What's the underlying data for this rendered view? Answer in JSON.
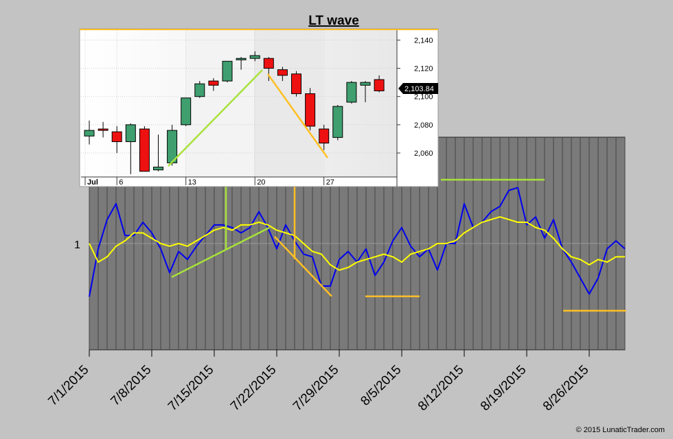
{
  "chart_data": [
    {
      "type": "line",
      "title": "LT wave",
      "x_tick_labels": [
        "7/1/2015",
        "7/8/2015",
        "7/15/2015",
        "7/22/2015",
        "7/29/2015",
        "8/5/2015",
        "8/12/2015",
        "8/19/2015",
        "8/26/2015"
      ],
      "y_tick_labels": [
        "1"
      ],
      "ylim": [
        0.6,
        1.4
      ],
      "n_points": 61,
      "series": [
        {
          "color": "#0000ee",
          "values": [
            0.8,
            0.98,
            1.09,
            1.15,
            1.03,
            1.03,
            1.08,
            1.04,
            0.98,
            0.89,
            0.97,
            0.94,
            0.99,
            1.03,
            1.07,
            1.07,
            1.06,
            1.04,
            1.06,
            1.12,
            1.06,
            0.98,
            1.07,
            1.01,
            0.96,
            0.95,
            0.84,
            0.84,
            0.94,
            0.97,
            0.93,
            0.98,
            0.88,
            0.93,
            1.01,
            1.06,
            0.99,
            0.95,
            0.98,
            0.9,
            1.0,
            1.0,
            1.15,
            1.06,
            1.08,
            1.12,
            1.14,
            1.2,
            1.21,
            1.07,
            1.1,
            1.02,
            1.09,
            0.98,
            0.93,
            0.87,
            0.81,
            0.87,
            0.98,
            1.01,
            0.98
          ]
        },
        {
          "color": "#ffff00",
          "values": [
            1.0,
            0.93,
            0.95,
            0.99,
            1.01,
            1.04,
            1.04,
            1.02,
            1.0,
            0.99,
            1.0,
            0.99,
            1.01,
            1.03,
            1.05,
            1.06,
            1.05,
            1.07,
            1.07,
            1.08,
            1.07,
            1.05,
            1.04,
            1.03,
            1.0,
            0.97,
            0.96,
            0.92,
            0.9,
            0.91,
            0.93,
            0.94,
            0.95,
            0.96,
            0.95,
            0.93,
            0.96,
            0.97,
            0.98,
            1.0,
            1.0,
            1.01,
            1.04,
            1.06,
            1.08,
            1.09,
            1.1,
            1.09,
            1.08,
            1.08,
            1.06,
            1.05,
            1.02,
            0.98,
            0.95,
            0.94,
            0.92,
            0.94,
            0.93,
            0.95,
            0.95
          ]
        }
      ]
    },
    {
      "type": "candlestick",
      "x_tick_labels": [
        "Jul",
        "6",
        "13",
        "20",
        "27"
      ],
      "y_tick_labels": [
        "2,140",
        "2,120",
        "2,100",
        "2,080",
        "2,060"
      ],
      "ylim": [
        2043,
        2147
      ],
      "last_price_label": "2,103.84",
      "candles": [
        {
          "o": 2072,
          "h": 2083,
          "l": 2066,
          "c": 2076
        },
        {
          "o": 2077,
          "h": 2082,
          "l": 2071,
          "c": 2076
        },
        {
          "o": 2075,
          "h": 2079,
          "l": 2060,
          "c": 2068
        },
        {
          "o": 2068,
          "h": 2081,
          "l": 2045,
          "c": 2080
        },
        {
          "o": 2077,
          "h": 2079,
          "l": 2047,
          "c": 2047
        },
        {
          "o": 2048,
          "h": 2073,
          "l": 2047,
          "c": 2050
        },
        {
          "o": 2053,
          "h": 2080,
          "l": 2051,
          "c": 2076
        },
        {
          "o": 2080,
          "h": 2099,
          "l": 2079,
          "c": 2099
        },
        {
          "o": 2100,
          "h": 2111,
          "l": 2099,
          "c": 2109
        },
        {
          "o": 2111,
          "h": 2113,
          "l": 2104,
          "c": 2108
        },
        {
          "o": 2111,
          "h": 2125,
          "l": 2110,
          "c": 2125
        },
        {
          "o": 2126,
          "h": 2128,
          "l": 2119,
          "c": 2127
        },
        {
          "o": 2127,
          "h": 2132,
          "l": 2125,
          "c": 2129
        },
        {
          "o": 2127,
          "h": 2128,
          "l": 2111,
          "c": 2120
        },
        {
          "o": 2119,
          "h": 2121,
          "l": 2111,
          "c": 2115
        },
        {
          "o": 2116,
          "h": 2118,
          "l": 2100,
          "c": 2102
        },
        {
          "o": 2102,
          "h": 2106,
          "l": 2076,
          "c": 2079
        },
        {
          "o": 2077,
          "h": 2080,
          "l": 2062,
          "c": 2067
        },
        {
          "o": 2071,
          "h": 2094,
          "l": 2069,
          "c": 2093
        },
        {
          "o": 2096,
          "h": 2111,
          "l": 2095,
          "c": 2110
        },
        {
          "o": 2108,
          "h": 2111,
          "l": 2096,
          "c": 2110
        },
        {
          "o": 2112,
          "h": 2115,
          "l": 2103,
          "c": 2104
        }
      ]
    }
  ],
  "colors": {
    "up_candle": "#3f9f6f",
    "down_candle": "#ee1111",
    "green_line": "#a8e23a",
    "orange_line": "#ffbf24",
    "plot_background": "#7a7a7a",
    "page_background": "#c3c3c3"
  },
  "copyright": "© 2015 LunaticTrader.com"
}
